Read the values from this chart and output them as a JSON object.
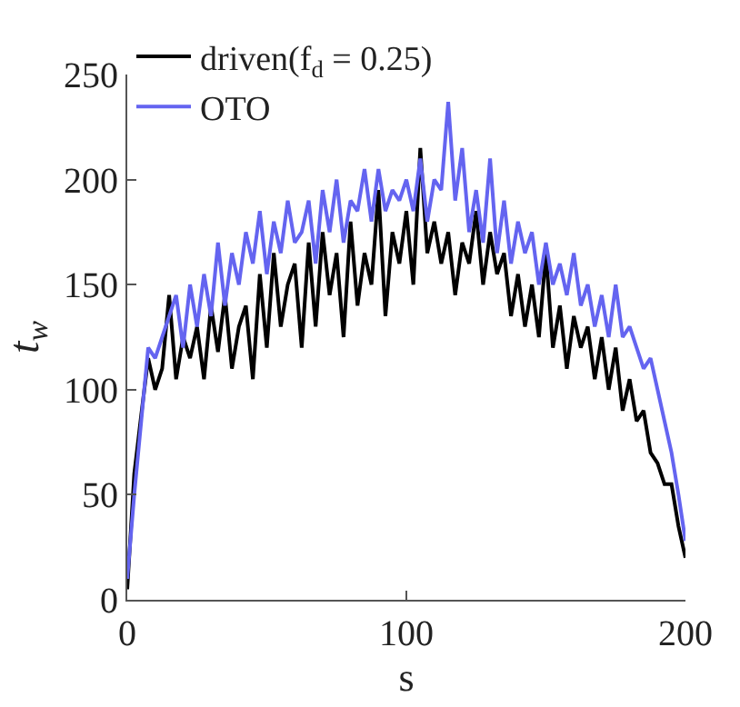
{
  "chart_data": {
    "type": "line",
    "xlabel": "s",
    "ylabel": "t$_{w}$",
    "x": [
      0,
      2.5,
      5,
      7.5,
      10,
      12.5,
      15,
      17.5,
      20,
      22.5,
      25,
      27.5,
      30,
      32.5,
      35,
      37.5,
      40,
      42.5,
      45,
      47.5,
      50,
      52.5,
      55,
      57.5,
      60,
      62.5,
      65,
      67.5,
      70,
      72.5,
      75,
      77.5,
      80,
      82.5,
      85,
      87.5,
      90,
      92.5,
      95,
      97.5,
      100,
      102.5,
      105,
      107.5,
      110,
      112.5,
      115,
      117.5,
      120,
      122.5,
      125,
      127.5,
      130,
      132.5,
      135,
      137.5,
      140,
      142.5,
      145,
      147.5,
      150,
      152.5,
      155,
      157.5,
      160,
      162.5,
      165,
      167.5,
      170,
      172.5,
      175,
      177.5,
      180,
      182.5,
      185,
      187.5,
      190,
      192.5,
      195,
      197.5,
      200
    ],
    "series": [
      {
        "name": "driven(f$_{d}$ = 0.25)",
        "color": "#000000",
        "values": [
          5,
          60,
          88,
          115,
          100,
          110,
          145,
          105,
          125,
          115,
          130,
          105,
          140,
          118,
          145,
          110,
          130,
          140,
          105,
          155,
          120,
          165,
          130,
          150,
          160,
          120,
          170,
          130,
          175,
          145,
          165,
          125,
          180,
          140,
          165,
          150,
          195,
          135,
          175,
          160,
          185,
          150,
          215,
          165,
          180,
          160,
          175,
          145,
          170,
          160,
          185,
          150,
          175,
          155,
          165,
          135,
          155,
          130,
          150,
          125,
          165,
          120,
          140,
          110,
          135,
          120,
          130,
          105,
          125,
          100,
          120,
          90,
          105,
          85,
          90,
          70,
          65,
          55,
          55,
          35,
          20
        ]
      },
      {
        "name": "OTO",
        "color": "#6464f0",
        "values": [
          10,
          50,
          85,
          120,
          115,
          125,
          135,
          145,
          120,
          150,
          130,
          155,
          135,
          170,
          140,
          165,
          150,
          175,
          160,
          185,
          155,
          180,
          165,
          190,
          170,
          175,
          190,
          160,
          195,
          175,
          200,
          170,
          190,
          185,
          205,
          180,
          205,
          185,
          195,
          190,
          200,
          185,
          210,
          180,
          200,
          195,
          237,
          190,
          215,
          175,
          195,
          170,
          210,
          165,
          190,
          160,
          180,
          165,
          175,
          150,
          170,
          150,
          160,
          145,
          165,
          140,
          150,
          130,
          145,
          125,
          150,
          125,
          130,
          120,
          110,
          115,
          100,
          85,
          70,
          50,
          28
        ]
      }
    ],
    "xlim": [
      0,
      200
    ],
    "xticks": [
      0,
      100,
      200
    ],
    "ylim": [
      0,
      250
    ],
    "yticks": [
      0,
      50,
      100,
      150,
      200,
      250
    ],
    "legend": "top left",
    "marker": "none",
    "line_style": "solid"
  }
}
